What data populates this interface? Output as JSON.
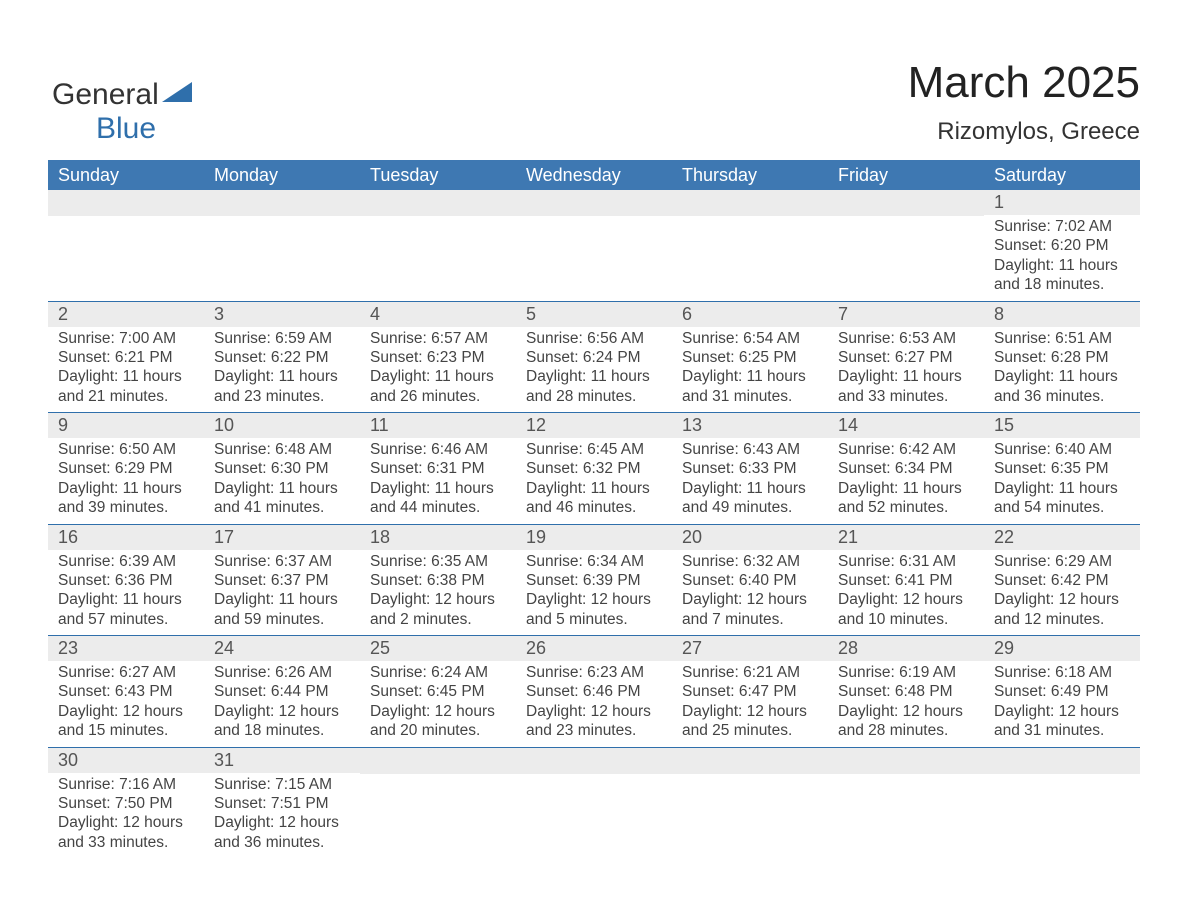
{
  "brand": {
    "word1": "General",
    "word2": "Blue",
    "accent_hex": "#2f6fab"
  },
  "title": "March 2025",
  "subtitle": "Rizomylos, Greece",
  "header_bg_hex": "#3e78b2",
  "header_text_hex": "#ffffff",
  "daynum_bg_hex": "#ececec",
  "rule_hex": "#2f6fab",
  "text_hex": "#444444",
  "columns": [
    "Sunday",
    "Monday",
    "Tuesday",
    "Wednesday",
    "Thursday",
    "Friday",
    "Saturday"
  ],
  "labels": {
    "sunrise": "Sunrise: ",
    "sunset": "Sunset: ",
    "daylight": "Daylight: "
  },
  "weeks": [
    [
      null,
      null,
      null,
      null,
      null,
      null,
      {
        "n": "1",
        "sunrise": "7:02 AM",
        "sunset": "6:20 PM",
        "daylight": "11 hours and 18 minutes."
      }
    ],
    [
      {
        "n": "2",
        "sunrise": "7:00 AM",
        "sunset": "6:21 PM",
        "daylight": "11 hours and 21 minutes."
      },
      {
        "n": "3",
        "sunrise": "6:59 AM",
        "sunset": "6:22 PM",
        "daylight": "11 hours and 23 minutes."
      },
      {
        "n": "4",
        "sunrise": "6:57 AM",
        "sunset": "6:23 PM",
        "daylight": "11 hours and 26 minutes."
      },
      {
        "n": "5",
        "sunrise": "6:56 AM",
        "sunset": "6:24 PM",
        "daylight": "11 hours and 28 minutes."
      },
      {
        "n": "6",
        "sunrise": "6:54 AM",
        "sunset": "6:25 PM",
        "daylight": "11 hours and 31 minutes."
      },
      {
        "n": "7",
        "sunrise": "6:53 AM",
        "sunset": "6:27 PM",
        "daylight": "11 hours and 33 minutes."
      },
      {
        "n": "8",
        "sunrise": "6:51 AM",
        "sunset": "6:28 PM",
        "daylight": "11 hours and 36 minutes."
      }
    ],
    [
      {
        "n": "9",
        "sunrise": "6:50 AM",
        "sunset": "6:29 PM",
        "daylight": "11 hours and 39 minutes."
      },
      {
        "n": "10",
        "sunrise": "6:48 AM",
        "sunset": "6:30 PM",
        "daylight": "11 hours and 41 minutes."
      },
      {
        "n": "11",
        "sunrise": "6:46 AM",
        "sunset": "6:31 PM",
        "daylight": "11 hours and 44 minutes."
      },
      {
        "n": "12",
        "sunrise": "6:45 AM",
        "sunset": "6:32 PM",
        "daylight": "11 hours and 46 minutes."
      },
      {
        "n": "13",
        "sunrise": "6:43 AM",
        "sunset": "6:33 PM",
        "daylight": "11 hours and 49 minutes."
      },
      {
        "n": "14",
        "sunrise": "6:42 AM",
        "sunset": "6:34 PM",
        "daylight": "11 hours and 52 minutes."
      },
      {
        "n": "15",
        "sunrise": "6:40 AM",
        "sunset": "6:35 PM",
        "daylight": "11 hours and 54 minutes."
      }
    ],
    [
      {
        "n": "16",
        "sunrise": "6:39 AM",
        "sunset": "6:36 PM",
        "daylight": "11 hours and 57 minutes."
      },
      {
        "n": "17",
        "sunrise": "6:37 AM",
        "sunset": "6:37 PM",
        "daylight": "11 hours and 59 minutes."
      },
      {
        "n": "18",
        "sunrise": "6:35 AM",
        "sunset": "6:38 PM",
        "daylight": "12 hours and 2 minutes."
      },
      {
        "n": "19",
        "sunrise": "6:34 AM",
        "sunset": "6:39 PM",
        "daylight": "12 hours and 5 minutes."
      },
      {
        "n": "20",
        "sunrise": "6:32 AM",
        "sunset": "6:40 PM",
        "daylight": "12 hours and 7 minutes."
      },
      {
        "n": "21",
        "sunrise": "6:31 AM",
        "sunset": "6:41 PM",
        "daylight": "12 hours and 10 minutes."
      },
      {
        "n": "22",
        "sunrise": "6:29 AM",
        "sunset": "6:42 PM",
        "daylight": "12 hours and 12 minutes."
      }
    ],
    [
      {
        "n": "23",
        "sunrise": "6:27 AM",
        "sunset": "6:43 PM",
        "daylight": "12 hours and 15 minutes."
      },
      {
        "n": "24",
        "sunrise": "6:26 AM",
        "sunset": "6:44 PM",
        "daylight": "12 hours and 18 minutes."
      },
      {
        "n": "25",
        "sunrise": "6:24 AM",
        "sunset": "6:45 PM",
        "daylight": "12 hours and 20 minutes."
      },
      {
        "n": "26",
        "sunrise": "6:23 AM",
        "sunset": "6:46 PM",
        "daylight": "12 hours and 23 minutes."
      },
      {
        "n": "27",
        "sunrise": "6:21 AM",
        "sunset": "6:47 PM",
        "daylight": "12 hours and 25 minutes."
      },
      {
        "n": "28",
        "sunrise": "6:19 AM",
        "sunset": "6:48 PM",
        "daylight": "12 hours and 28 minutes."
      },
      {
        "n": "29",
        "sunrise": "6:18 AM",
        "sunset": "6:49 PM",
        "daylight": "12 hours and 31 minutes."
      }
    ],
    [
      {
        "n": "30",
        "sunrise": "7:16 AM",
        "sunset": "7:50 PM",
        "daylight": "12 hours and 33 minutes."
      },
      {
        "n": "31",
        "sunrise": "7:15 AM",
        "sunset": "7:51 PM",
        "daylight": "12 hours and 36 minutes."
      },
      null,
      null,
      null,
      null,
      null
    ]
  ]
}
